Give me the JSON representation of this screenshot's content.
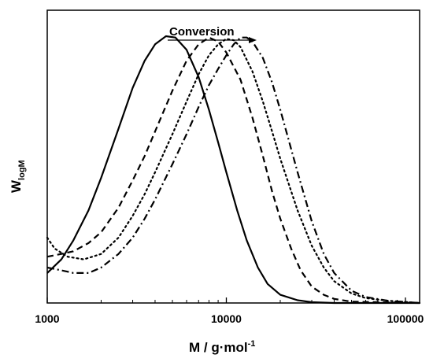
{
  "chart_data": {
    "type": "line",
    "xscale": "log",
    "xlim": [
      1000,
      120000
    ],
    "ylim": [
      0,
      1.0
    ],
    "grid": false,
    "xlabel": {
      "main": "M / g·mol",
      "superscript": "-1"
    },
    "ylabel": {
      "main": "W",
      "subscript": "logM"
    },
    "x_ticks": [
      1000,
      10000,
      100000
    ],
    "x_tick_labels": [
      "1000",
      "10000",
      "100000"
    ],
    "annotation": {
      "text": "Conversion",
      "arrow": "right"
    },
    "series": [
      {
        "style": "solid",
        "points": [
          [
            1000,
            0.11
          ],
          [
            1200,
            0.16
          ],
          [
            1400,
            0.23
          ],
          [
            1700,
            0.34
          ],
          [
            2000,
            0.46
          ],
          [
            2500,
            0.64
          ],
          [
            3000,
            0.79
          ],
          [
            3500,
            0.89
          ],
          [
            4000,
            0.95
          ],
          [
            4600,
            0.98
          ],
          [
            5200,
            0.975
          ],
          [
            6000,
            0.93
          ],
          [
            7000,
            0.83
          ],
          [
            8000,
            0.71
          ],
          [
            9000,
            0.59
          ],
          [
            10000,
            0.48
          ],
          [
            11500,
            0.34
          ],
          [
            13000,
            0.23
          ],
          [
            15000,
            0.13
          ],
          [
            17000,
            0.07
          ],
          [
            20000,
            0.03
          ],
          [
            25000,
            0.01
          ],
          [
            30000,
            0.003
          ],
          [
            40000,
            0
          ],
          [
            120000,
            0
          ]
        ]
      },
      {
        "style": "dashed",
        "points": [
          [
            1000,
            0.17
          ],
          [
            1200,
            0.18
          ],
          [
            1400,
            0.19
          ],
          [
            1700,
            0.22
          ],
          [
            2000,
            0.26
          ],
          [
            2500,
            0.35
          ],
          [
            3000,
            0.45
          ],
          [
            3500,
            0.54
          ],
          [
            4000,
            0.63
          ],
          [
            5000,
            0.78
          ],
          [
            6000,
            0.89
          ],
          [
            7000,
            0.95
          ],
          [
            8000,
            0.975
          ],
          [
            9000,
            0.96
          ],
          [
            10000,
            0.92
          ],
          [
            12000,
            0.82
          ],
          [
            14000,
            0.68
          ],
          [
            16000,
            0.54
          ],
          [
            18000,
            0.41
          ],
          [
            20000,
            0.31
          ],
          [
            23000,
            0.2
          ],
          [
            26000,
            0.12
          ],
          [
            30000,
            0.06
          ],
          [
            35000,
            0.03
          ],
          [
            40000,
            0.015
          ],
          [
            50000,
            0.005
          ],
          [
            120000,
            0
          ]
        ]
      },
      {
        "style": "dotted",
        "points": [
          [
            1000,
            0.24
          ],
          [
            1100,
            0.2
          ],
          [
            1300,
            0.17
          ],
          [
            1600,
            0.16
          ],
          [
            2000,
            0.18
          ],
          [
            2500,
            0.24
          ],
          [
            3000,
            0.32
          ],
          [
            3500,
            0.4
          ],
          [
            4000,
            0.48
          ],
          [
            5000,
            0.62
          ],
          [
            6000,
            0.74
          ],
          [
            7000,
            0.84
          ],
          [
            8000,
            0.91
          ],
          [
            9000,
            0.95
          ],
          [
            10000,
            0.97
          ],
          [
            11000,
            0.965
          ],
          [
            12000,
            0.94
          ],
          [
            14000,
            0.85
          ],
          [
            16000,
            0.74
          ],
          [
            18000,
            0.63
          ],
          [
            20000,
            0.53
          ],
          [
            25000,
            0.34
          ],
          [
            30000,
            0.21
          ],
          [
            35000,
            0.13
          ],
          [
            40000,
            0.08
          ],
          [
            50000,
            0.035
          ],
          [
            60000,
            0.018
          ],
          [
            80000,
            0.008
          ],
          [
            120000,
            0
          ]
        ]
      },
      {
        "style": "dash-dot",
        "points": [
          [
            1000,
            0.13
          ],
          [
            1200,
            0.12
          ],
          [
            1400,
            0.11
          ],
          [
            1700,
            0.11
          ],
          [
            2000,
            0.13
          ],
          [
            2500,
            0.18
          ],
          [
            3000,
            0.24
          ],
          [
            3500,
            0.31
          ],
          [
            4000,
            0.38
          ],
          [
            5000,
            0.51
          ],
          [
            6000,
            0.62
          ],
          [
            7000,
            0.72
          ],
          [
            8000,
            0.8
          ],
          [
            9000,
            0.86
          ],
          [
            10000,
            0.91
          ],
          [
            11000,
            0.95
          ],
          [
            12000,
            0.975
          ],
          [
            13000,
            0.975
          ],
          [
            14000,
            0.96
          ],
          [
            16000,
            0.9
          ],
          [
            18000,
            0.81
          ],
          [
            20000,
            0.71
          ],
          [
            25000,
            0.48
          ],
          [
            30000,
            0.3
          ],
          [
            35000,
            0.18
          ],
          [
            40000,
            0.11
          ],
          [
            50000,
            0.045
          ],
          [
            60000,
            0.022
          ],
          [
            80000,
            0.008
          ],
          [
            120000,
            0
          ]
        ]
      }
    ]
  }
}
